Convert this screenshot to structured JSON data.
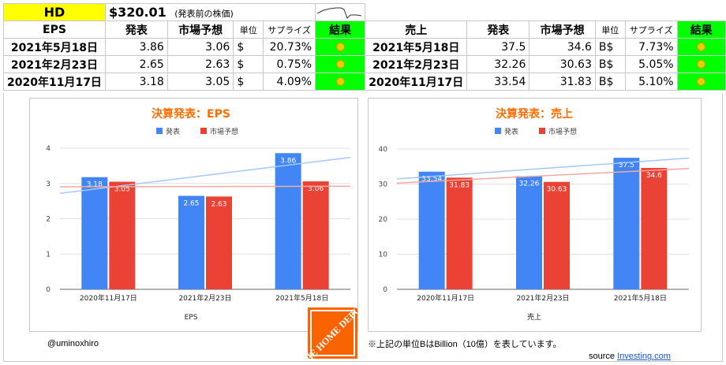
{
  "header": {
    "ticker": "HD",
    "price": "$320.01",
    "price_note": "(発表前の株価)"
  },
  "eps_table": {
    "headers": [
      "EPS",
      "発表",
      "市場予想",
      "単位",
      "サプライズ",
      "結果"
    ],
    "rows": [
      {
        "date": "2021年5月18日",
        "actual": "3.86",
        "forecast": "3.06",
        "unit": "$",
        "surprise": "20.73%"
      },
      {
        "date": "2021年2月23日",
        "actual": "2.65",
        "forecast": "2.63",
        "unit": "$",
        "surprise": "0.75%"
      },
      {
        "date": "2020年11月17日",
        "actual": "3.18",
        "forecast": "3.05",
        "unit": "$",
        "surprise": "4.09%"
      }
    ]
  },
  "sales_table": {
    "headers": [
      "売上",
      "発表",
      "市場予想",
      "単位",
      "サプライズ",
      "結果"
    ],
    "rows": [
      {
        "date": "2021年5月18日",
        "actual": "37.5",
        "forecast": "34.6",
        "unit": "B$",
        "surprise": "7.73%"
      },
      {
        "date": "2021年2月23日",
        "actual": "32.26",
        "forecast": "30.63",
        "unit": "B$",
        "surprise": "5.05%"
      },
      {
        "date": "2020年11月17日",
        "actual": "33.54",
        "forecast": "31.83",
        "unit": "B$",
        "surprise": "5.10%"
      }
    ]
  },
  "result_icon": "smiley-icon",
  "colors": {
    "actual": "#4285f4",
    "forecast": "#ea4335",
    "title": "#ff6d01",
    "result_bg": "#00ff00",
    "ticker_bg": "#ffff00"
  },
  "chart_data": [
    {
      "type": "bar",
      "title": "決算発表：EPS",
      "xlabel": "EPS",
      "categories": [
        "2020年11月17日",
        "2021年2月23日",
        "2021年5月18日"
      ],
      "series": [
        {
          "name": "発表",
          "values": [
            3.18,
            2.65,
            3.86
          ]
        },
        {
          "name": "市場予想",
          "values": [
            3.05,
            2.63,
            3.06
          ]
        }
      ],
      "yticks": [
        "0",
        "1",
        "2",
        "3",
        "4"
      ],
      "ylim": [
        0,
        4
      ],
      "trendlines": true,
      "legend": "top"
    },
    {
      "type": "bar",
      "title": "決算発表：売上",
      "xlabel": "売上",
      "categories": [
        "2020年11月17日",
        "2021年2月23日",
        "2021年5月18日"
      ],
      "series": [
        {
          "name": "発表",
          "values": [
            33.54,
            32.26,
            37.5
          ]
        },
        {
          "name": "市場予想",
          "values": [
            31.83,
            30.63,
            34.6
          ]
        }
      ],
      "yticks": [
        "0",
        "10",
        "20",
        "30",
        "40"
      ],
      "ylim": [
        0,
        40
      ],
      "trendlines": true,
      "legend": "top"
    }
  ],
  "footer": {
    "author": "@uminoxhiro",
    "note": "※上記の単位BはBillion（10億）を表しています。",
    "source_label": "source",
    "source_link": "Investing.com",
    "logo_text": "THE HOME DEPOT"
  }
}
